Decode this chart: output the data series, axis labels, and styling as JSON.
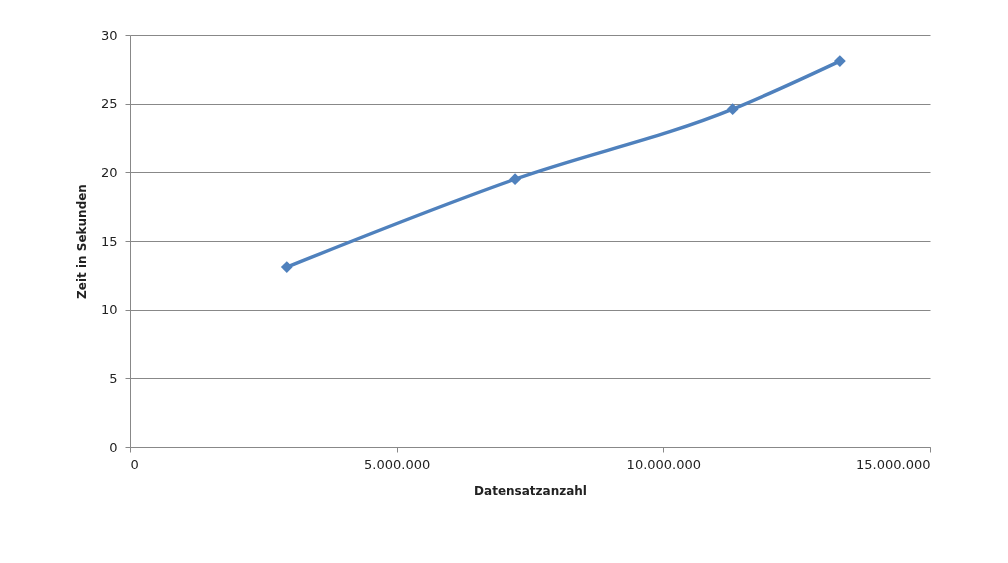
{
  "chart_data": {
    "type": "line",
    "xlabel": "Datensatzanzahl",
    "ylabel": "Zeit in Sekunden",
    "x": [
      2940000,
      7220000,
      11300000,
      13310000
    ],
    "series": [
      {
        "color": "#4f81bd",
        "values": [
          13.1,
          19.5,
          24.6,
          28.1
        ]
      }
    ],
    "xlim": [
      0,
      15000000
    ],
    "xticks": [
      0,
      {
        "value": 5000000,
        "label": "5.000.000"
      },
      {
        "value": 10000000,
        "label": "10.000.000"
      },
      {
        "value": 15000000,
        "label": "15.000.000"
      }
    ],
    "ylim": [
      0,
      30
    ],
    "yticks": [
      0,
      5,
      10,
      15,
      20,
      25,
      30
    ],
    "grid": "y",
    "marker": "diamond",
    "line_style": "solid"
  }
}
